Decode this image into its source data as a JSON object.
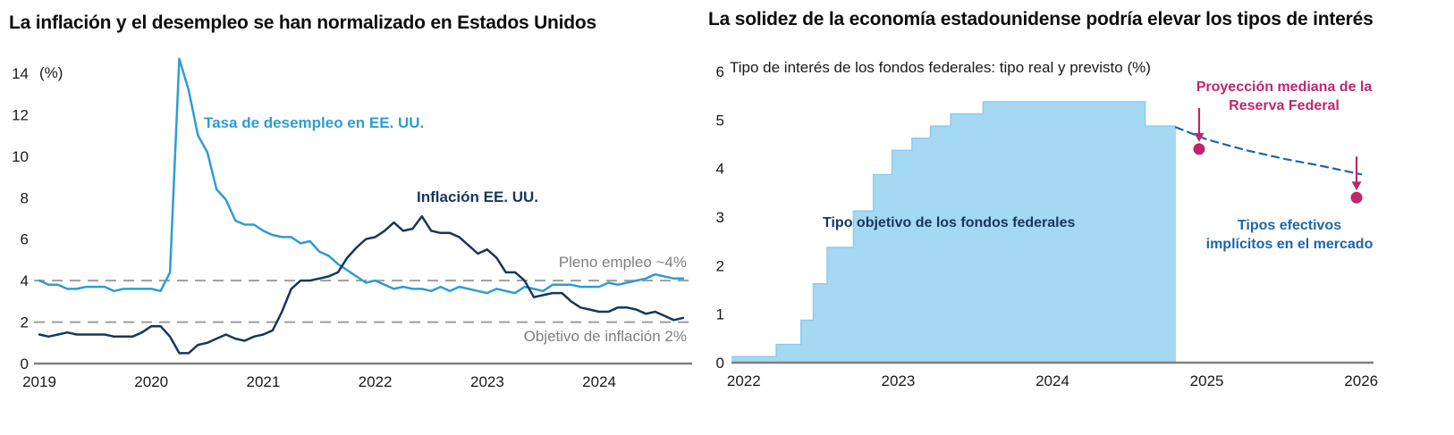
{
  "page": {
    "background": "#ffffff"
  },
  "chart_data": [
    {
      "id": "us-inflation-unemployment",
      "type": "line",
      "title": "La inflación y el desempleo se han normalizado en Estados Unidos",
      "ylabel": "(%)",
      "ylim": [
        0,
        14
      ],
      "yticks": [
        0,
        2,
        4,
        6,
        8,
        10,
        12,
        14
      ],
      "xlim": [
        2019,
        2024.83
      ],
      "xticks": [
        2019,
        2020,
        2021,
        2022,
        2023,
        2024
      ],
      "grid": false,
      "legend": "inline-labels",
      "reference_lines": [
        {
          "value": 4,
          "label": "Pleno empleo ~4%",
          "color": "#9e9e9e"
        },
        {
          "value": 2,
          "label": "Objetivo de inflación 2%",
          "color": "#9e9e9e"
        }
      ],
      "series": [
        {
          "name": "Tasa de desempleo en EE. UU.",
          "color": "#2E9CD6",
          "width": 2.5,
          "x_start": 2019.0,
          "x_interval": 0.08333,
          "values": [
            4.0,
            3.8,
            3.8,
            3.6,
            3.6,
            3.7,
            3.7,
            3.7,
            3.5,
            3.6,
            3.6,
            3.6,
            3.6,
            3.5,
            4.4,
            14.7,
            13.2,
            11.0,
            10.2,
            8.4,
            7.9,
            6.9,
            6.7,
            6.7,
            6.4,
            6.2,
            6.1,
            6.1,
            5.8,
            5.9,
            5.4,
            5.2,
            4.8,
            4.5,
            4.2,
            3.9,
            4.0,
            3.8,
            3.6,
            3.7,
            3.6,
            3.6,
            3.5,
            3.7,
            3.5,
            3.7,
            3.6,
            3.5,
            3.4,
            3.6,
            3.5,
            3.4,
            3.7,
            3.6,
            3.5,
            3.8,
            3.8,
            3.8,
            3.7,
            3.7,
            3.7,
            3.9,
            3.8,
            3.9,
            4.0,
            4.1,
            4.3,
            4.2,
            4.1,
            4.1
          ]
        },
        {
          "name": "Inflación EE. UU.",
          "color": "#17365D",
          "width": 2.5,
          "x_start": 2019.0,
          "x_interval": 0.08333,
          "values": [
            1.4,
            1.3,
            1.4,
            1.5,
            1.4,
            1.4,
            1.4,
            1.4,
            1.3,
            1.3,
            1.3,
            1.5,
            1.8,
            1.8,
            1.3,
            0.5,
            0.5,
            0.9,
            1.0,
            1.2,
            1.4,
            1.2,
            1.1,
            1.3,
            1.4,
            1.6,
            2.5,
            3.6,
            4.0,
            4.0,
            4.1,
            4.2,
            4.4,
            5.1,
            5.6,
            6.0,
            6.1,
            6.4,
            6.8,
            6.4,
            6.5,
            7.1,
            6.4,
            6.3,
            6.3,
            6.1,
            5.7,
            5.3,
            5.5,
            5.1,
            4.4,
            4.4,
            4.0,
            3.2,
            3.3,
            3.4,
            3.4,
            3.0,
            2.7,
            2.6,
            2.5,
            2.5,
            2.7,
            2.7,
            2.6,
            2.4,
            2.5,
            2.3,
            2.1,
            2.2
          ]
        }
      ]
    },
    {
      "id": "fed-funds-rate",
      "type": "area",
      "title": "La solidez de la economía estadounidense podría elevar los tipos de interés",
      "subtitle": "Tipo de interés de los fondos federales: tipo real y previsto (%)",
      "ylim": [
        0,
        6
      ],
      "yticks": [
        0,
        1,
        2,
        3,
        4,
        5,
        6
      ],
      "xlim": [
        2021.92,
        2026.08
      ],
      "xticks": [
        2022,
        2023,
        2024,
        2025,
        2026
      ],
      "grid": false,
      "series": [
        {
          "name": "Tipo objetivo de los fondos federales",
          "style": "step-area",
          "fill": "#A5D8F3",
          "color": "#8CCBEC",
          "breakpoints": [
            [
              2021.92,
              0.125
            ],
            [
              2022.21,
              0.375
            ],
            [
              2022.37,
              0.875
            ],
            [
              2022.45,
              1.625
            ],
            [
              2022.54,
              2.375
            ],
            [
              2022.71,
              3.125
            ],
            [
              2022.84,
              3.875
            ],
            [
              2022.96,
              4.375
            ],
            [
              2023.09,
              4.625
            ],
            [
              2023.21,
              4.875
            ],
            [
              2023.34,
              5.125
            ],
            [
              2023.55,
              5.375
            ],
            [
              2024.6,
              4.875
            ]
          ],
          "x_end": 2024.8
        },
        {
          "name": "Tipos efectivos implícitos en el mercado",
          "name_lines": [
            "Tipos efectivos",
            "implícitos en el mercado"
          ],
          "color": "#1E66A8",
          "width": 2.2,
          "dash": "8 6",
          "x": [
            2024.8,
            2025.0,
            2025.25,
            2025.5,
            2025.75,
            2026.0
          ],
          "values": [
            4.85,
            4.6,
            4.38,
            4.2,
            4.05,
            3.88
          ]
        }
      ],
      "points": [
        {
          "label": "Proyección mediana de la Reserva Federal",
          "x": 2024.95,
          "value": 4.4,
          "color": "#C0266C",
          "arrow": true
        },
        {
          "label": "Proyección mediana de la Reserva Federal",
          "x": 2025.97,
          "value": 3.4,
          "color": "#C0266C",
          "arrow": true
        }
      ],
      "projection_label_lines": [
        "Proyección mediana de la",
        "Reserva Federal"
      ]
    }
  ]
}
